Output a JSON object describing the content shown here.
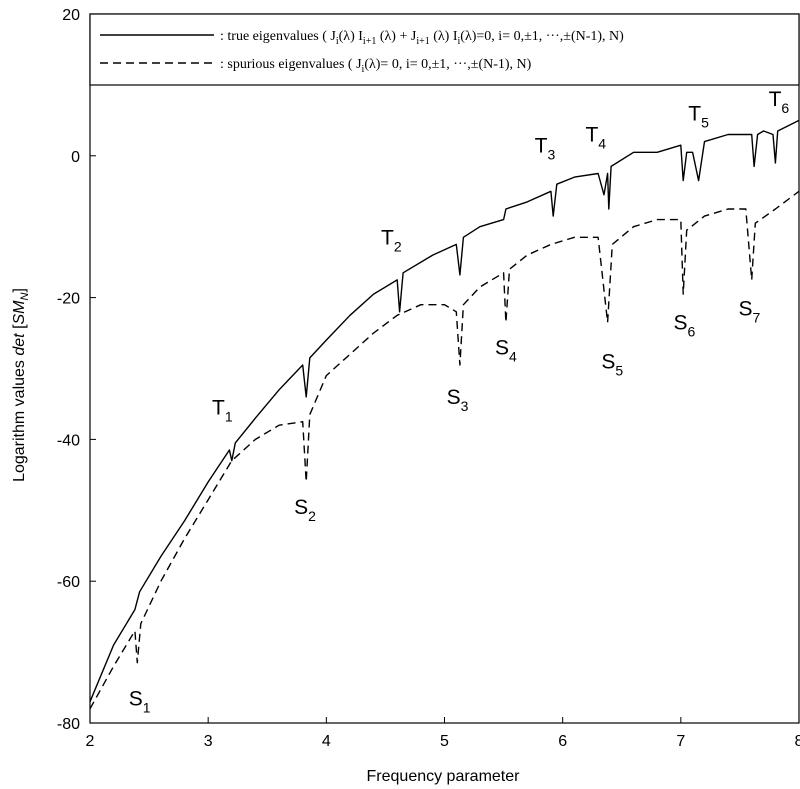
{
  "chart_data": {
    "type": "line",
    "xlabel": "Frequency parameter",
    "ylabel": "Logarithm values det [SM_N]",
    "ylabel_parts": {
      "prefix": "Logarithm values ",
      "italic_word": "det",
      "open_bracket": " [",
      "sym_main": "SM",
      "sym_sub": "N",
      "close_bracket": "]"
    },
    "xlim": [
      2,
      8
    ],
    "ylim": [
      -80,
      20
    ],
    "x_ticks": [
      2,
      3,
      4,
      5,
      6,
      7,
      8
    ],
    "x_tick_labels": [
      "2",
      "3",
      "4",
      "5",
      "6",
      "7",
      "8"
    ],
    "y_ticks": [
      -80,
      -60,
      -40,
      -20,
      0,
      20
    ],
    "y_tick_labels": [
      "-80",
      "-60",
      "-40",
      "-20",
      "0",
      "20"
    ],
    "grid": false,
    "legend_position": "top",
    "legend": [
      {
        "style": "solid",
        "text": ": true eigenvalues ( J_i(λ) I_{i+1} (λ) + J_{i+1} (λ) I_i(λ)=0, i= 0,±1, ···,±(N-1), N)"
      },
      {
        "style": "dashed",
        "text": ": spurious eigenvalues ( J_i(λ)= 0, i= 0,±1, ···,±(N-1), N)"
      }
    ],
    "series": [
      {
        "style": "solid",
        "points": [
          [
            2.0,
            -77.0
          ],
          [
            2.2,
            -69.0
          ],
          [
            2.38,
            -64.0
          ],
          [
            2.42,
            -61.5
          ],
          [
            2.6,
            -56.5
          ],
          [
            2.8,
            -51.5
          ],
          [
            3.0,
            -46.0
          ],
          [
            3.18,
            -41.5
          ],
          [
            3.2,
            -43.0
          ],
          [
            3.23,
            -40.5
          ],
          [
            3.4,
            -37.0
          ],
          [
            3.6,
            -33.0
          ],
          [
            3.8,
            -29.5
          ],
          [
            3.83,
            -34.0
          ],
          [
            3.86,
            -28.5
          ],
          [
            4.0,
            -26.0
          ],
          [
            4.2,
            -22.5
          ],
          [
            4.4,
            -19.5
          ],
          [
            4.6,
            -17.5
          ],
          [
            4.62,
            -22.0
          ],
          [
            4.65,
            -16.5
          ],
          [
            4.9,
            -14.0
          ],
          [
            5.1,
            -12.5
          ],
          [
            5.13,
            -16.8
          ],
          [
            5.16,
            -11.5
          ],
          [
            5.3,
            -10.0
          ],
          [
            5.5,
            -9.0
          ],
          [
            5.52,
            -7.5
          ],
          [
            5.7,
            -6.5
          ],
          [
            5.9,
            -5.0
          ],
          [
            5.92,
            -8.5
          ],
          [
            5.95,
            -4.0
          ],
          [
            6.1,
            -3.0
          ],
          [
            6.3,
            -2.5
          ],
          [
            6.35,
            -5.5
          ],
          [
            6.38,
            -2.5
          ],
          [
            6.39,
            -7.5
          ],
          [
            6.41,
            -1.5
          ],
          [
            6.6,
            0.5
          ],
          [
            6.8,
            0.5
          ],
          [
            7.0,
            1.5
          ],
          [
            7.02,
            -3.5
          ],
          [
            7.05,
            0.5
          ],
          [
            7.1,
            0.5
          ],
          [
            7.15,
            -3.5
          ],
          [
            7.2,
            2.0
          ],
          [
            7.4,
            3.0
          ],
          [
            7.6,
            3.0
          ],
          [
            7.62,
            -1.5
          ],
          [
            7.65,
            3.0
          ],
          [
            7.7,
            3.5
          ],
          [
            7.78,
            3.0
          ],
          [
            7.8,
            -1.0
          ],
          [
            7.82,
            3.5
          ],
          [
            8.0,
            5.0
          ]
        ]
      },
      {
        "style": "dashed",
        "points": [
          [
            2.0,
            -78.0
          ],
          [
            2.2,
            -72.0
          ],
          [
            2.38,
            -67.0
          ],
          [
            2.4,
            -71.5
          ],
          [
            2.43,
            -66.0
          ],
          [
            2.6,
            -60.0
          ],
          [
            2.8,
            -54.0
          ],
          [
            3.0,
            -48.5
          ],
          [
            3.2,
            -43.0
          ],
          [
            3.4,
            -40.0
          ],
          [
            3.6,
            -38.0
          ],
          [
            3.8,
            -37.5
          ],
          [
            3.83,
            -46.0
          ],
          [
            3.86,
            -36.5
          ],
          [
            4.0,
            -31.0
          ],
          [
            4.2,
            -28.0
          ],
          [
            4.4,
            -25.0
          ],
          [
            4.6,
            -22.5
          ],
          [
            4.8,
            -21.0
          ],
          [
            5.0,
            -21.0
          ],
          [
            5.1,
            -22.0
          ],
          [
            5.13,
            -29.5
          ],
          [
            5.16,
            -21.0
          ],
          [
            5.3,
            -18.5
          ],
          [
            5.5,
            -16.5
          ],
          [
            5.52,
            -23.5
          ],
          [
            5.55,
            -16.0
          ],
          [
            5.7,
            -14.0
          ],
          [
            5.9,
            -12.5
          ],
          [
            6.1,
            -11.5
          ],
          [
            6.3,
            -11.5
          ],
          [
            6.38,
            -23.5
          ],
          [
            6.42,
            -12.5
          ],
          [
            6.6,
            -10.0
          ],
          [
            6.8,
            -9.0
          ],
          [
            7.0,
            -9.0
          ],
          [
            7.02,
            -19.5
          ],
          [
            7.05,
            -10.5
          ],
          [
            7.2,
            -8.5
          ],
          [
            7.4,
            -7.5
          ],
          [
            7.55,
            -7.5
          ],
          [
            7.6,
            -17.5
          ],
          [
            7.63,
            -9.5
          ],
          [
            7.8,
            -7.5
          ],
          [
            8.0,
            -5.0
          ]
        ]
      }
    ],
    "annotations": [
      {
        "base": "T",
        "sub": "1",
        "x": 3.12,
        "y": -36.5
      },
      {
        "base": "T",
        "sub": "2",
        "x": 4.55,
        "y": -12.5
      },
      {
        "base": "T",
        "sub": "3",
        "x": 5.85,
        "y": 0.5
      },
      {
        "base": "T",
        "sub": "4",
        "x": 6.28,
        "y": 2.0
      },
      {
        "base": "T",
        "sub": "5",
        "x": 7.15,
        "y": 5.0
      },
      {
        "base": "T",
        "sub": "6",
        "x": 7.83,
        "y": 7.0
      },
      {
        "base": "S",
        "sub": "1",
        "x": 2.42,
        "y": -77.5
      },
      {
        "base": "S",
        "sub": "2",
        "x": 3.82,
        "y": -50.5
      },
      {
        "base": "S",
        "sub": "3",
        "x": 5.11,
        "y": -35.0
      },
      {
        "base": "S",
        "sub": "4",
        "x": 5.52,
        "y": -28.0
      },
      {
        "base": "S",
        "sub": "5",
        "x": 6.42,
        "y": -30.0
      },
      {
        "base": "S",
        "sub": "6",
        "x": 7.03,
        "y": -24.5
      },
      {
        "base": "S",
        "sub": "7",
        "x": 7.58,
        "y": -22.5
      }
    ]
  }
}
